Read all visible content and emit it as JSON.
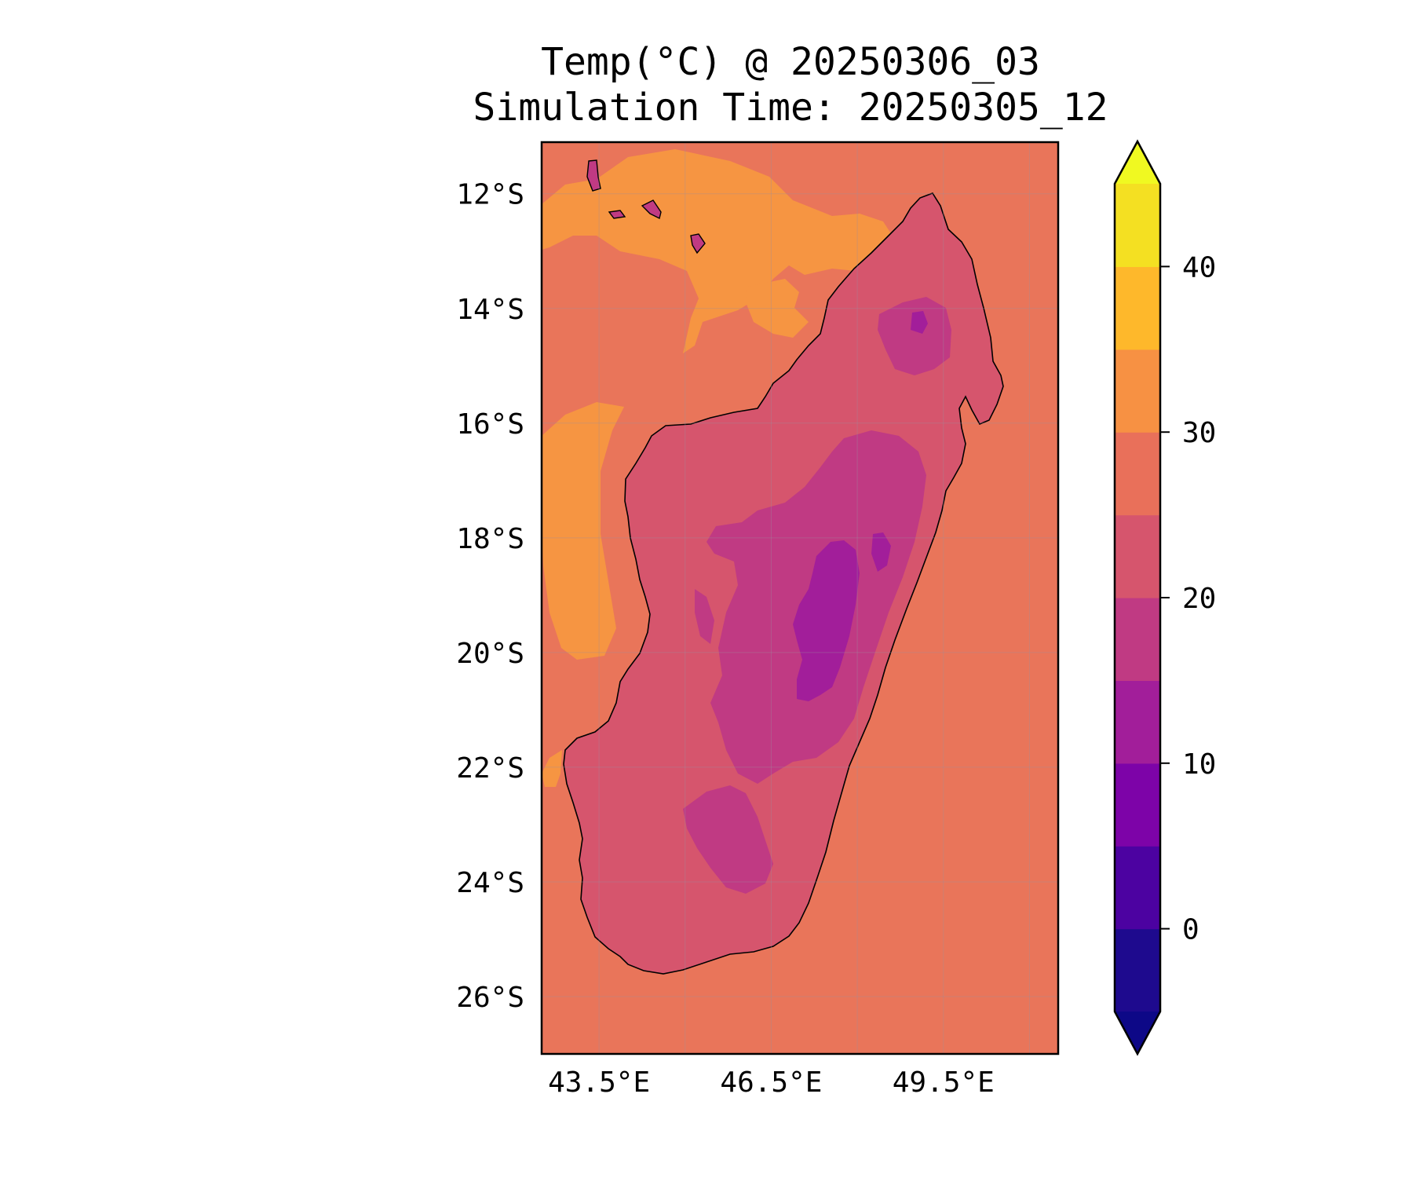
{
  "title": {
    "line1": "Temp(°C) @ 20250306_03",
    "line2": "Simulation Time: 20250305_12"
  },
  "map": {
    "region": "Madagascar",
    "projection": "PlateCarree",
    "lon_range": [
      42.5,
      51.5
    ],
    "lat_range": [
      -27.0,
      -11.1
    ],
    "lon_ticks": [
      {
        "value": 43.5,
        "label": "43.5°E"
      },
      {
        "value": 46.5,
        "label": "46.5°E"
      },
      {
        "value": 49.5,
        "label": "49.5°E"
      }
    ],
    "lat_ticks": [
      {
        "value": -12,
        "label": "12°S"
      },
      {
        "value": -14,
        "label": "14°S"
      },
      {
        "value": -16,
        "label": "16°S"
      },
      {
        "value": -18,
        "label": "18°S"
      },
      {
        "value": -20,
        "label": "20°S"
      },
      {
        "value": -22,
        "label": "22°S"
      },
      {
        "value": -24,
        "label": "24°S"
      },
      {
        "value": -26,
        "label": "26°S"
      }
    ],
    "gridlines": true,
    "coastlines": true,
    "ocean_temperature_band": "25-30",
    "warm_patch_band": "30-35",
    "land_bands": [
      "20-25",
      "15-20",
      "10-15"
    ]
  },
  "colorbar": {
    "cmap": "plasma",
    "extend": "both",
    "levels": [
      -5,
      0,
      5,
      10,
      15,
      20,
      25,
      30,
      35,
      40,
      45
    ],
    "tick_values": [
      0,
      10,
      20,
      30,
      40
    ],
    "tick_labels": [
      "0",
      "10",
      "20",
      "30",
      "40"
    ],
    "band_colors": [
      "#1e0a8e",
      "#4c02a1",
      "#7d03a8",
      "#a21e9a",
      "#c03a83",
      "#d6556d",
      "#e9705a",
      "#f79143",
      "#feb82b",
      "#f4e022"
    ],
    "under_color": "#0d0887",
    "over_color": "#f0f921"
  },
  "colors": {
    "band_10_15": "#a21e9a",
    "band_15_20": "#c03a83",
    "band_20_25": "#d6556d",
    "band_25_30": "#e9755a",
    "band_30_35": "#f69542"
  }
}
